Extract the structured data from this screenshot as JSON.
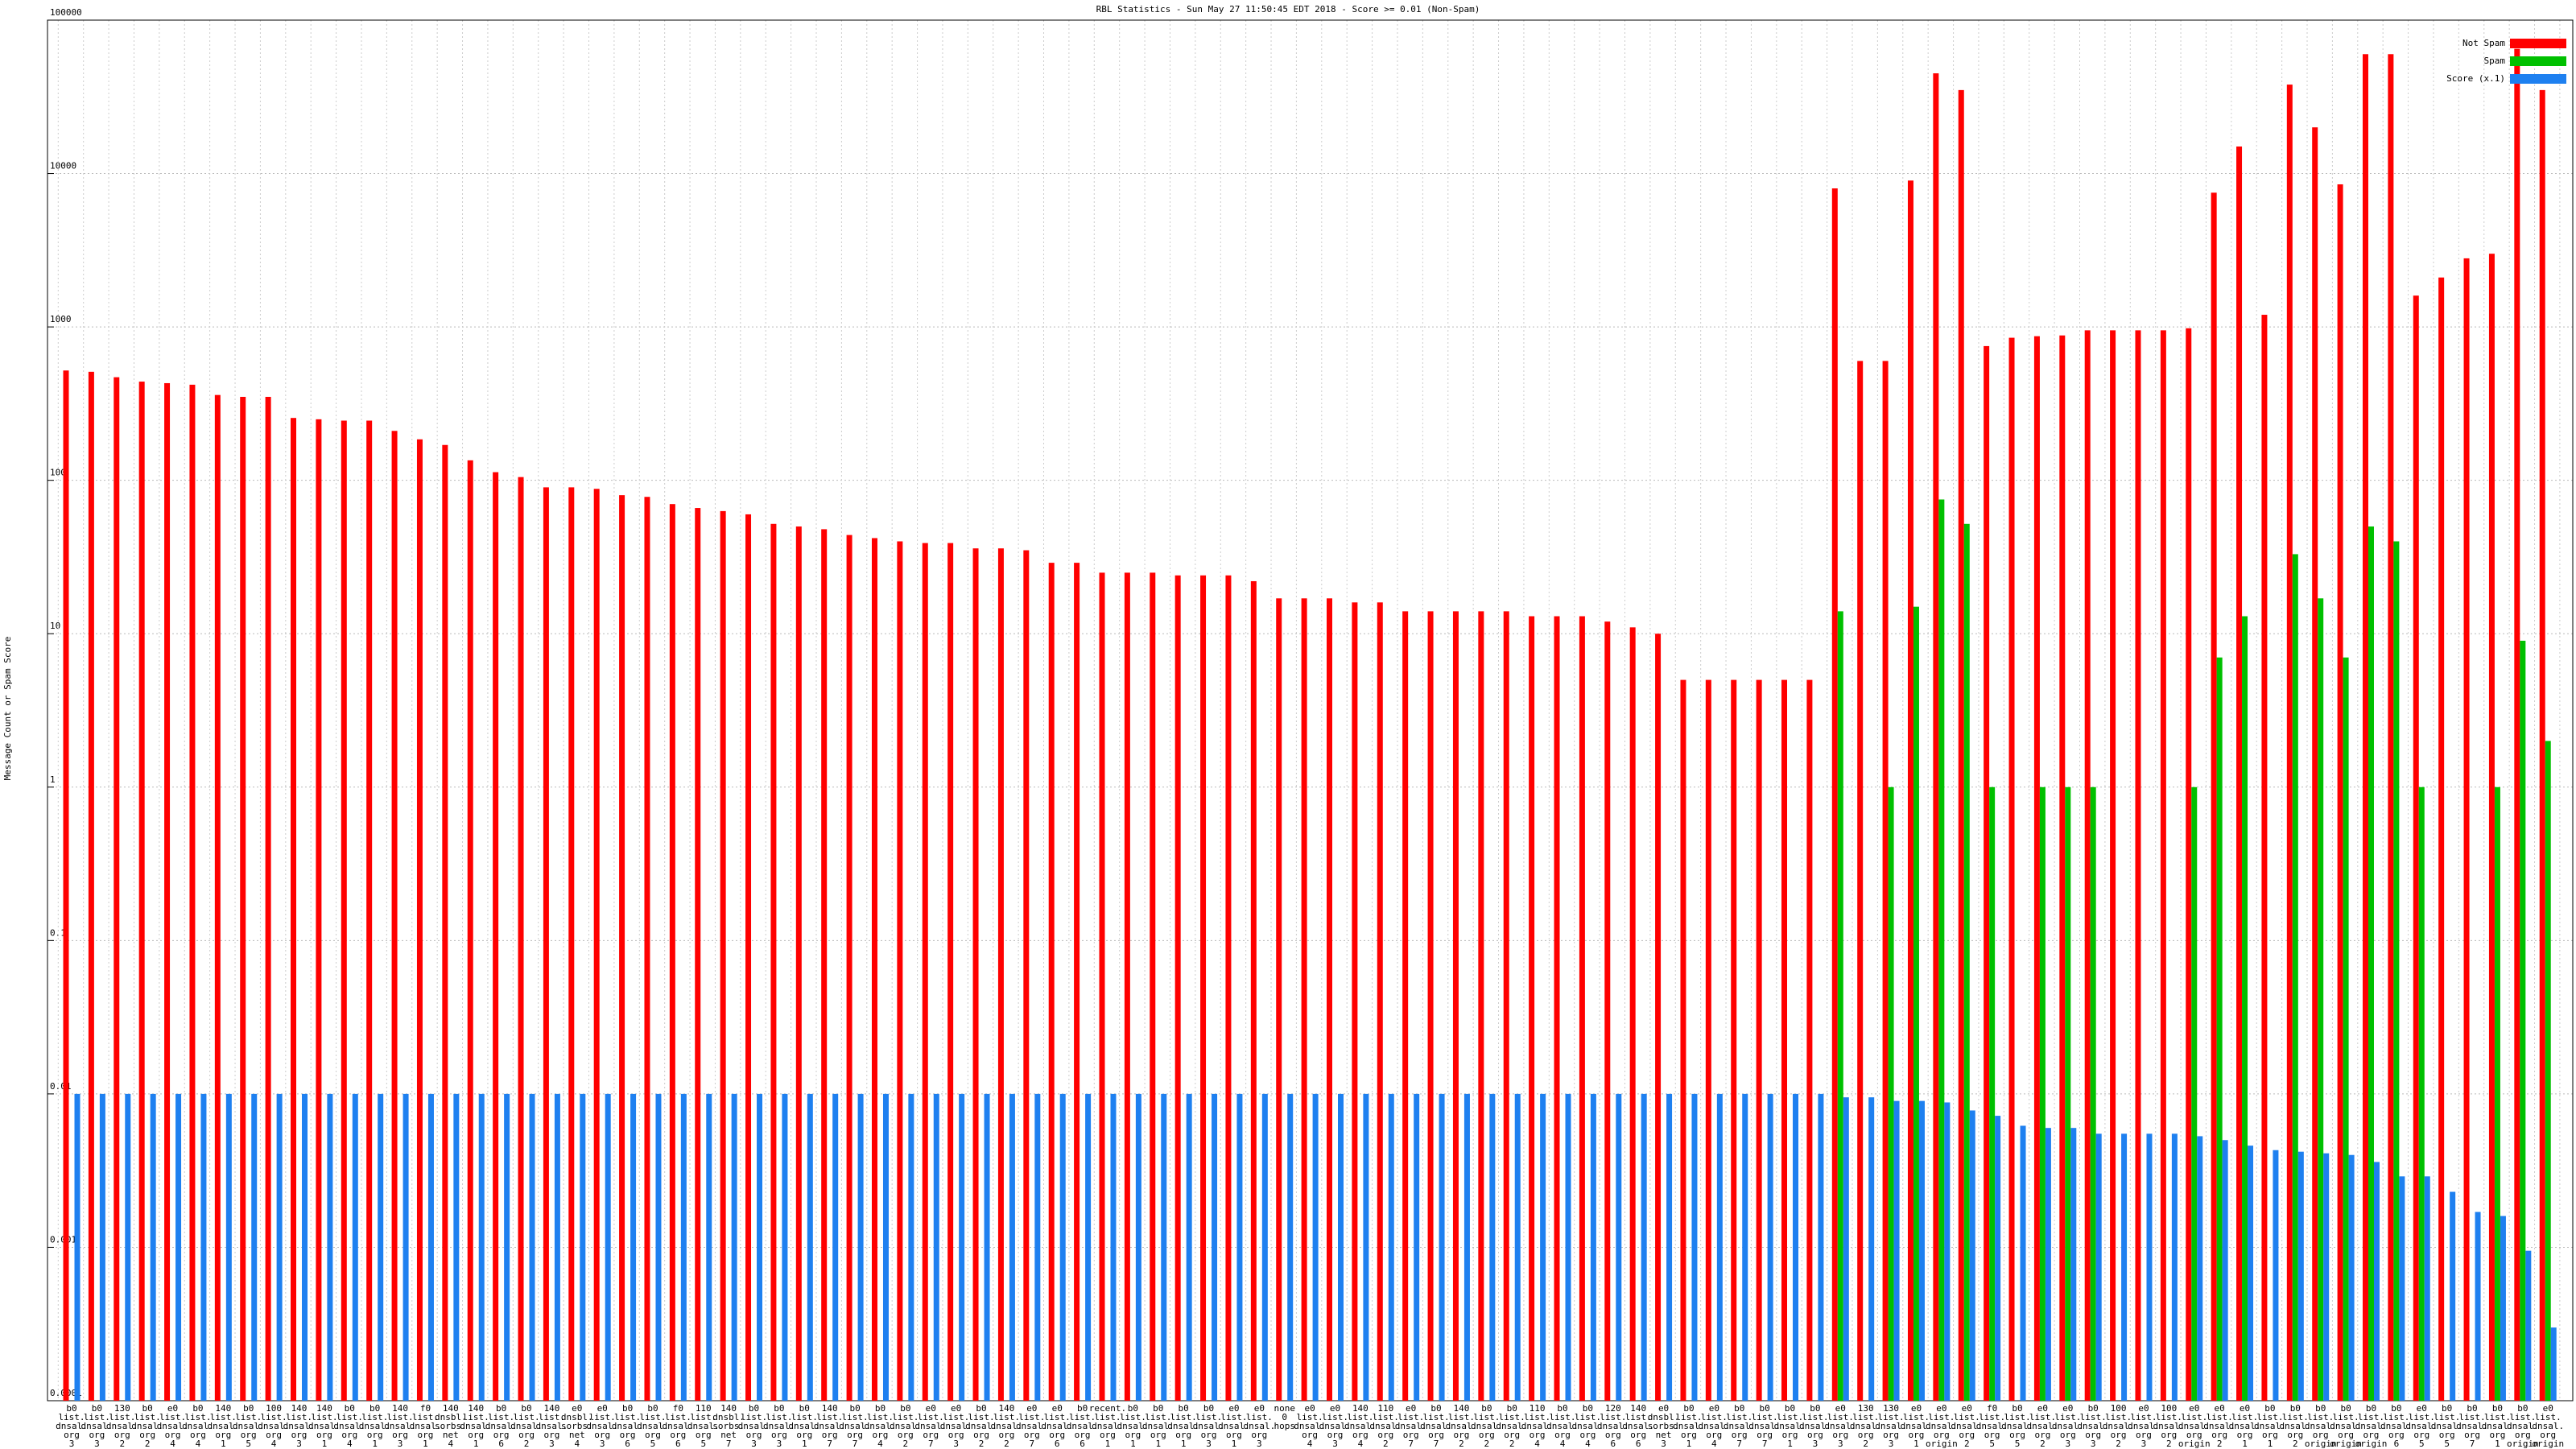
{
  "chart_data": {
    "type": "bar",
    "title": "RBL Statistics - Sun May 27 11:50:45 EDT 2018 - Score >= 0.01 (Non-Spam)",
    "y_label": "Message Count or Spam Score",
    "log_scale": true,
    "grid": true,
    "legend": "top-right",
    "ylim": [
      0.0001,
      100000
    ],
    "yticks": [
      0.0001,
      0.001,
      0.01,
      0.1,
      1,
      10,
      100,
      1000,
      10000,
      100000
    ],
    "categories": [
      "b0 list. dnsal. org 3 hops",
      "b0 list. dnsal. org 3 hops",
      "130 list. dnsal. org 2 hops",
      "b0 list. dnsal. org 2 hops",
      "e0 list. dnsal. org 4 hops",
      "b0 list. dnsal. org 4 hops",
      "140 list. dnsal. org 1 hop",
      "b0 list. dnsal. org 5 hops",
      "100 list. dnsal. org 4 hops",
      "140 list. dnsal. org 3 hops",
      "140 list. dnsal. org 1 hop",
      "b0 list. dnsal. org 4 hops",
      "b0 list. dnsal. org 1 hop",
      "140 list. dnsal. org 3 hops",
      "f0 list. dnsal. org 1 hop",
      "140 dnsbl. sorbs. net 4 hops",
      "140 list. dnsal. org 1 hop",
      "b0 list. dnsal. org 6 hops",
      "b0 list. dnsal. org 2 hops",
      "140 list. dnsal. org 3 hops",
      "e0 dnsbl. sorbs. net 4 hops",
      "e0 list. dnsal. org 3 hops",
      "b0 list. dnsal. org 6 hops",
      "b0 list. dnsal. org 5 hops",
      "f0 list. dnsal. org 6 hops",
      "110 list. dnsal. org 5 hops",
      "140 dnsbl. sorbs. net 7 hops",
      "b0 list. dnsal. org 3 hops",
      "b0 list. dnsal. org 3 hops",
      "b0 list. dnsal. org 1 hop",
      "140 list. dnsal. org 7 hops",
      "b0 list. dnsal. org 7 hops",
      "b0 list. dnsal. org 4 hops",
      "b0 list. dnsal. org 2 hops",
      "e0 list. dnsal. org 7 hops",
      "e0 list. dnsal. org 3 hops",
      "b0 list. dnsal. org 2 hops",
      "140 list. dnsal. org 2 hops",
      "e0 list. dnsal. org 7 hops",
      "e0 list. dnsal. org 6 hops",
      "b0 list. dnsal. org 6 hops",
      "recent. list. dnsal. org 1 hop",
      "b0 list. dnsal. org 1 hop",
      "b0 list. dnsal. org 1 hop",
      "b0 list. dnsal. org 1 hop",
      "b0 list. dnsal. org 3 hops",
      "e0 list. dnsal. org 1 hop",
      "e0 list. dnsal. org 3 hops",
      "none 0 hops",
      "e0 list. dnsal. org 4 hops",
      "e0 list. dnsal. org 3 hops",
      "140 list. dnsal. org 4 hops",
      "110 list. dnsal. org 2 hops",
      "e0 list. dnsal. org 7 hops",
      "b0 list. dnsal. org 7 hops",
      "140 list. dnsal. org 2 hops",
      "b0 list. dnsal. org 2 hops",
      "b0 list. dnsal. org 2 hops",
      "110 list. dnsal. org 4 hops",
      "b0 list. dnsal. org 4 hops",
      "b0 list. dnsal. org 4 hops",
      "120 list. dnsal. org 6 hops",
      "140 list. dnsal. org 6 hops",
      "e0 dnsbl. sorbs. net 3 hops",
      "b0 list. dnsal. org 1 hop",
      "e0 list. dnsal. org 4 hops",
      "b0 list. dnsal. org 7 hops",
      "b0 list. dnsal. org 7 hops",
      "b0 list. dnsal. org 1 hop",
      "b0 list. dnsal. org 3 hops",
      "e0 list. dnsal. org 3 hops",
      "130 list. dnsal. org 2 hops",
      "130 list. dnsal. org 3 hops",
      "e0 list. dnsal. org 1 hop",
      "e0 list. dnsal. org origin",
      "e0 list. dnsal. org 2 hops",
      "f0 list. dnsal. org 5 hops",
      "b0 list. dnsal. org 5 hops",
      "e0 list. dnsal. org 2 hops",
      "e0 list. dnsal. org 3 hops",
      "b0 list. dnsal. org 3 hops",
      "100 list. dnsal. org 2 hops",
      "e0 list. dnsal. org 3 hops",
      "100 list. dnsal. org 2 hops",
      "e0 list. dnsal. org origin",
      "e0 list. dnsal. org 2 hops",
      "e0 list. dnsal. org 1 hop",
      "b0 list. dnsal. org 1 hop",
      "b0 list. dnsal. org 2 hops",
      "b0 list. dnsal. org origin",
      "b0 list. dnsal. org origin",
      "b0 list. dnsal. org origin",
      "b0 list. dnsal. org 6 hops",
      "e0 list. dnsal. org 5 hops",
      "b0 list. dnsal. org 5 hops",
      "b0 list. dnsal. org 7 hops",
      "b0 list. dnsal. org 1 hop",
      "b0 list. dnsal. org origin",
      "e0 list. dnsal. org origin"
    ],
    "series": [
      {
        "name": "Not Spam",
        "color": "#ff0000",
        "values": [
          520,
          510,
          470,
          440,
          430,
          420,
          360,
          350,
          350,
          255,
          250,
          245,
          245,
          210,
          185,
          170,
          135,
          113,
          105,
          90,
          90,
          88,
          80,
          78,
          70,
          66,
          63,
          60,
          52,
          50,
          48,
          44,
          42,
          40,
          39,
          39,
          36,
          36,
          35,
          29,
          29,
          25,
          25,
          25,
          24,
          24,
          24,
          22,
          17,
          17,
          17,
          16,
          16,
          14,
          14,
          14,
          14,
          14,
          13,
          13,
          13,
          12,
          11,
          10,
          5,
          5,
          5,
          5,
          5,
          5,
          8000,
          600,
          600,
          9000,
          45000,
          35000,
          750,
          850,
          870,
          880,
          950,
          950,
          950,
          950,
          980,
          7500,
          15000,
          1200,
          38000,
          20000,
          8500,
          60000,
          60000,
          1600,
          2100,
          2800,
          3000,
          65000,
          35000
        ]
      },
      {
        "name": "Spam",
        "color": "#00c000",
        "values": [
          null,
          null,
          null,
          null,
          null,
          null,
          null,
          null,
          null,
          null,
          null,
          null,
          null,
          null,
          null,
          null,
          null,
          null,
          null,
          null,
          null,
          null,
          null,
          null,
          null,
          null,
          null,
          null,
          null,
          null,
          null,
          null,
          null,
          null,
          null,
          null,
          null,
          null,
          null,
          null,
          null,
          null,
          null,
          null,
          null,
          null,
          null,
          null,
          null,
          null,
          null,
          null,
          null,
          null,
          null,
          null,
          null,
          null,
          null,
          null,
          null,
          null,
          null,
          null,
          null,
          null,
          null,
          null,
          null,
          null,
          14,
          null,
          1,
          15,
          75,
          52,
          1,
          null,
          1,
          1,
          1,
          null,
          null,
          null,
          1,
          7,
          13,
          null,
          33,
          17,
          7,
          50,
          40,
          1,
          null,
          null,
          1,
          9,
          2
        ]
      },
      {
        "name": "Score (x.1)",
        "color": "#1e80f0",
        "values": [
          0.01,
          0.01,
          0.01,
          0.01,
          0.01,
          0.01,
          0.01,
          0.01,
          0.01,
          0.01,
          0.01,
          0.01,
          0.01,
          0.01,
          0.01,
          0.01,
          0.01,
          0.01,
          0.01,
          0.01,
          0.01,
          0.01,
          0.01,
          0.01,
          0.01,
          0.01,
          0.01,
          0.01,
          0.01,
          0.01,
          0.01,
          0.01,
          0.01,
          0.01,
          0.01,
          0.01,
          0.01,
          0.01,
          0.01,
          0.01,
          0.01,
          0.01,
          0.01,
          0.01,
          0.01,
          0.01,
          0.01,
          0.01,
          0.01,
          0.01,
          0.01,
          0.01,
          0.01,
          0.01,
          0.01,
          0.01,
          0.01,
          0.01,
          0.01,
          0.01,
          0.01,
          0.01,
          0.01,
          0.01,
          0.01,
          0.01,
          0.01,
          0.01,
          0.01,
          0.01,
          0.0095,
          0.0095,
          0.009,
          0.009,
          0.0088,
          0.0078,
          0.0072,
          0.0062,
          0.006,
          0.006,
          0.0055,
          0.0055,
          0.0055,
          0.0055,
          0.0053,
          0.005,
          0.0046,
          0.0043,
          0.0042,
          0.0041,
          0.004,
          0.0036,
          0.0029,
          0.0029,
          0.0023,
          0.0017,
          0.0016,
          0.00095,
          0.0003
        ]
      }
    ]
  }
}
